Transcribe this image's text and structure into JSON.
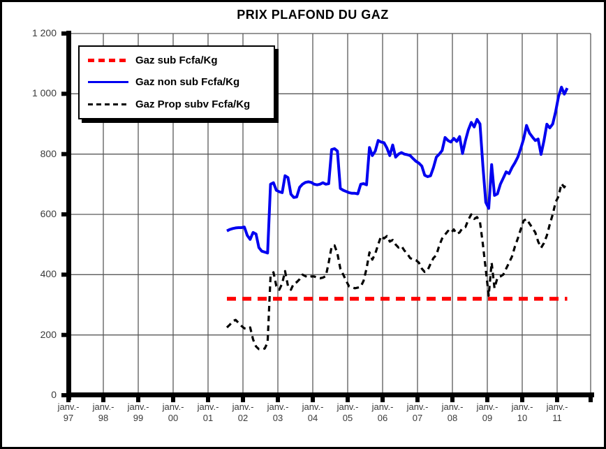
{
  "chart_data": {
    "type": "line",
    "title": "PRIX PLAFOND DU GAZ",
    "xlabel": "",
    "ylabel": "",
    "ylim": [
      0,
      1200
    ],
    "grid": true,
    "legend_position": "top-left",
    "y_tick_labels": [
      "0",
      "200",
      "400",
      "600",
      "800",
      "1 000",
      "1 200"
    ],
    "x_tick_prefix": "janv.-",
    "x_tick_years": [
      "97",
      "98",
      "99",
      "00",
      "01",
      "02",
      "03",
      "04",
      "05",
      "06",
      "07",
      "08",
      "09",
      "10",
      "11"
    ],
    "x_start_year": 2001.54,
    "points_per_year": 12,
    "series": [
      {
        "name": "Gaz sub Fcfa/Kg",
        "color": "#ff0000",
        "style": "dashed-thick",
        "constant_value": 320
      },
      {
        "name": "Gaz non sub Fcfa/Kg",
        "color": "#0000f0",
        "style": "solid",
        "values": [
          545,
          550,
          553,
          555,
          556,
          556,
          558,
          530,
          517,
          540,
          535,
          490,
          478,
          475,
          472,
          700,
          705,
          680,
          675,
          672,
          728,
          722,
          667,
          656,
          658,
          690,
          700,
          706,
          708,
          706,
          700,
          698,
          700,
          705,
          700,
          702,
          815,
          818,
          810,
          686,
          680,
          676,
          672,
          670,
          670,
          668,
          700,
          702,
          698,
          822,
          795,
          810,
          845,
          840,
          838,
          820,
          795,
          830,
          790,
          800,
          805,
          800,
          798,
          795,
          785,
          776,
          770,
          760,
          730,
          725,
          728,
          755,
          790,
          800,
          812,
          855,
          845,
          840,
          852,
          842,
          858,
          802,
          845,
          880,
          905,
          890,
          915,
          900,
          760,
          640,
          620,
          765,
          663,
          668,
          700,
          720,
          741,
          735,
          755,
          771,
          790,
          818,
          850,
          895,
          870,
          857,
          845,
          850,
          799,
          845,
          899,
          887,
          900,
          940,
          991,
          1022,
          999,
          1019
        ]
      },
      {
        "name": "Gaz Prop subv Fcfa/Kg",
        "color": "#000000",
        "style": "dashed",
        "values": [
          225,
          234,
          246,
          250,
          240,
          230,
          222,
          220,
          225,
          185,
          162,
          153,
          152,
          155,
          175,
          394,
          408,
          362,
          350,
          371,
          412,
          362,
          350,
          371,
          375,
          385,
          400,
          395,
          390,
          394,
          394,
          390,
          388,
          390,
          395,
          440,
          493,
          497,
          470,
          420,
          400,
          380,
          361,
          358,
          355,
          357,
          360,
          380,
          420,
          474,
          450,
          470,
          500,
          528,
          520,
          528,
          510,
          515,
          500,
          490,
          495,
          480,
          470,
          455,
          450,
          448,
          440,
          420,
          409,
          415,
          436,
          455,
          465,
          497,
          520,
          533,
          545,
          538,
          550,
          535,
          540,
          555,
          558,
          582,
          600,
          585,
          591,
          575,
          500,
          417,
          330,
          440,
          355,
          390,
          394,
          400,
          420,
          440,
          460,
          493,
          520,
          550,
          579,
          585,
          570,
          555,
          540,
          510,
          489,
          505,
          530,
          567,
          600,
          640,
          660,
          702,
          690,
          707
        ]
      }
    ]
  },
  "colors": {
    "gridline": "#595959",
    "axis": "#000000",
    "tick_label": "#3a3a3a"
  }
}
